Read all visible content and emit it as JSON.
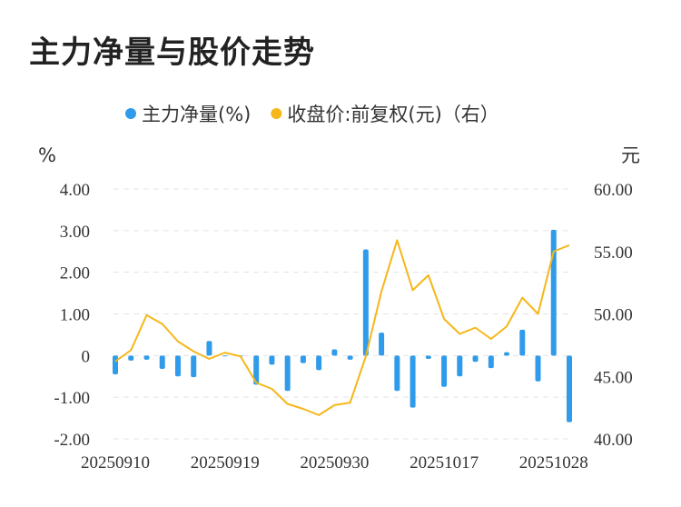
{
  "title": "主力净量与股价走势",
  "chart_data": {
    "type": "bar+line",
    "title": "主力净量与股价走势",
    "legend": {
      "placement": "top-center",
      "items": [
        {
          "label": "主力净量(%)",
          "color": "#2f9bea",
          "marker": "circle"
        },
        {
          "label": "收盘价:前复权(元)（右）",
          "color": "#f5b719",
          "marker": "circle"
        }
      ]
    },
    "y_left": {
      "unit": "%",
      "min": -2,
      "max": 4,
      "ticks": [
        "4.00",
        "3.00",
        "2.00",
        "1.00",
        "0",
        "-1.00",
        "-2.00"
      ]
    },
    "y_right": {
      "unit": "元",
      "min": 40,
      "max": 60,
      "ticks": [
        "60.00",
        "55.00",
        "50.00",
        "45.00",
        "40.00"
      ]
    },
    "x_tick_labels": [
      {
        "label": "20250910",
        "index": 0
      },
      {
        "label": "20250919",
        "index": 7
      },
      {
        "label": "20250930",
        "index": 14
      },
      {
        "label": "20251017",
        "index": 21
      },
      {
        "label": "20251028",
        "index": 28
      }
    ],
    "grid": true,
    "series": [
      {
        "name": "主力净量(%)",
        "type": "bar",
        "color": "#2f9bea",
        "values": [
          -0.45,
          -0.12,
          -0.1,
          -0.32,
          -0.5,
          -0.52,
          0.35,
          -0.02,
          0.0,
          -0.7,
          -0.22,
          -0.85,
          -0.18,
          -0.35,
          0.15,
          -0.1,
          2.55,
          0.55,
          -0.85,
          -1.25,
          -0.08,
          -0.75,
          -0.5,
          -0.15,
          -0.3,
          0.08,
          0.62,
          -0.62,
          3.02,
          -1.6
        ]
      },
      {
        "name": "收盘价:前复权(元)（右）",
        "type": "line",
        "color": "#f5b719",
        "values": [
          46.2,
          47.1,
          49.9,
          49.2,
          47.8,
          47.0,
          46.4,
          46.9,
          46.6,
          44.5,
          44.0,
          42.8,
          42.4,
          41.9,
          42.7,
          42.9,
          46.6,
          51.8,
          55.9,
          51.9,
          53.1,
          49.6,
          48.4,
          48.9,
          48.0,
          49.0,
          51.3,
          50.0,
          55.0,
          55.5
        ]
      }
    ]
  }
}
